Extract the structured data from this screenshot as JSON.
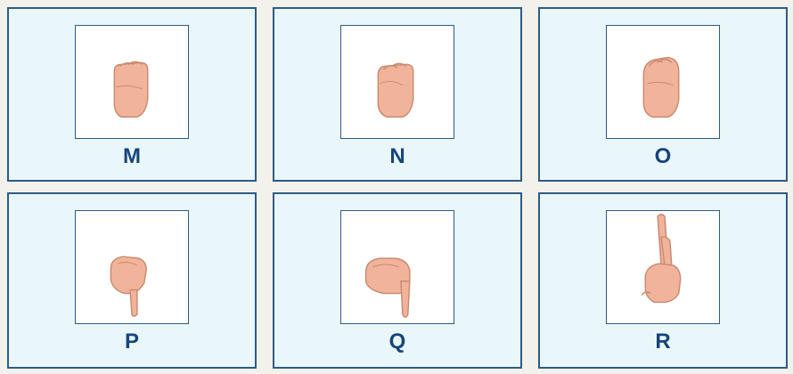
{
  "colors": {
    "page_background": "#f3f1ec",
    "card_background": "#e9f7fa",
    "card_border": "#2e5b86",
    "letter_color": "#15457a",
    "skin": "#f1b49a"
  },
  "cards": [
    {
      "letter": "M",
      "image_icon": "hand-sign-m-icon"
    },
    {
      "letter": "N",
      "image_icon": "hand-sign-n-icon"
    },
    {
      "letter": "O",
      "image_icon": "hand-sign-o-icon"
    },
    {
      "letter": "P",
      "image_icon": "hand-sign-p-icon"
    },
    {
      "letter": "Q",
      "image_icon": "hand-sign-q-icon"
    },
    {
      "letter": "R",
      "image_icon": "hand-sign-r-icon"
    }
  ]
}
